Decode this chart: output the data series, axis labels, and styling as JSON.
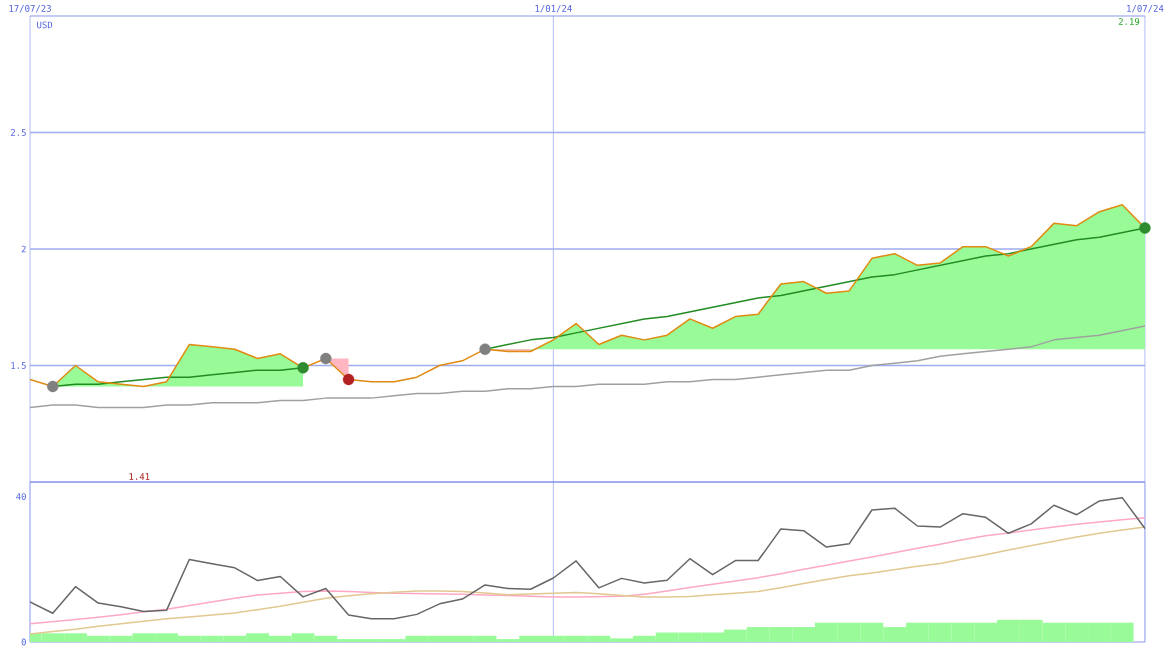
{
  "chart_data": [
    {
      "type": "line",
      "ylabel": "USD",
      "annotations": [
        "2.19",
        "1.41"
      ],
      "grid": true,
      "ylim": [
        1,
        3
      ],
      "yticks": [
        1.5,
        2,
        2.5
      ],
      "categories": [
        "17/07/23",
        null,
        null,
        null,
        null,
        null,
        null,
        null,
        null,
        null,
        null,
        null,
        null,
        null,
        null,
        null,
        null,
        null,
        null,
        null,
        null,
        null,
        null,
        "1/01/24",
        null,
        null,
        null,
        null,
        null,
        null,
        null,
        null,
        null,
        null,
        null,
        null,
        null,
        null,
        null,
        null,
        null,
        null,
        null,
        null,
        null,
        null,
        null,
        null,
        null,
        "1/07/24"
      ],
      "series": [
        {
          "type": "area",
          "color": "#98fb98",
          "values": [
            null,
            1.41,
            1.5,
            1.43,
            1.42,
            1.41,
            1.43,
            1.59,
            1.58,
            1.57,
            1.53,
            1.55,
            1.49,
            null,
            null,
            null,
            null,
            null,
            null,
            null,
            null,
            null,
            null,
            null,
            null,
            null,
            null,
            null,
            null,
            null,
            null,
            null,
            null,
            null,
            null,
            null,
            null,
            null,
            null,
            null,
            null,
            null,
            null,
            null,
            null,
            null,
            null,
            null,
            null,
            null
          ]
        },
        {
          "type": "area",
          "color": "#ffb6c1",
          "values": [
            null,
            null,
            null,
            null,
            null,
            null,
            null,
            null,
            null,
            null,
            null,
            null,
            null,
            1.53,
            1.44,
            null,
            null,
            null,
            null,
            null,
            null,
            null,
            null,
            null,
            null,
            null,
            null,
            null,
            null,
            null,
            null,
            null,
            null,
            null,
            null,
            null,
            null,
            null,
            null,
            null,
            null,
            null,
            null,
            null,
            null,
            null,
            null,
            null,
            null,
            null
          ]
        },
        {
          "type": "area",
          "color": "#98fb98",
          "values": [
            null,
            null,
            null,
            null,
            null,
            null,
            null,
            null,
            null,
            null,
            null,
            null,
            null,
            null,
            null,
            null,
            null,
            null,
            null,
            null,
            1.57,
            1.56,
            1.56,
            1.61,
            1.68,
            1.59,
            1.63,
            1.61,
            1.63,
            1.7,
            1.66,
            1.71,
            1.72,
            1.85,
            1.86,
            1.81,
            1.82,
            1.96,
            1.98,
            1.93,
            1.94,
            2.01,
            2.01,
            1.97,
            2.01,
            2.11,
            2.1,
            2.16,
            2.19,
            2.09
          ]
        },
        {
          "type": "area",
          "color": "#ffb6c1",
          "values": [
            null,
            null,
            null,
            null,
            null,
            null,
            null,
            null,
            null,
            null,
            null,
            null,
            null,
            null,
            null,
            null,
            null,
            null,
            null,
            null,
            1.57,
            1.56,
            1.56,
            null,
            null,
            null,
            null,
            null,
            null,
            null,
            null,
            null,
            null,
            null,
            null,
            null,
            null,
            null,
            null,
            null,
            null,
            null,
            null,
            null,
            null,
            null,
            null,
            null,
            null,
            null
          ]
        },
        {
          "color": "#a0a0a0",
          "values": [
            1.32,
            1.33,
            1.33,
            1.32,
            1.32,
            1.32,
            1.33,
            1.33,
            1.34,
            1.34,
            1.34,
            1.35,
            1.35,
            1.36,
            1.36,
            1.36,
            1.37,
            1.38,
            1.38,
            1.39,
            1.39,
            1.4,
            1.4,
            1.41,
            1.41,
            1.42,
            1.42,
            1.42,
            1.43,
            1.43,
            1.44,
            1.44,
            1.45,
            1.46,
            1.47,
            1.48,
            1.48,
            1.5,
            1.51,
            1.52,
            1.54,
            1.55,
            1.56,
            1.57,
            1.58,
            1.61,
            1.62,
            1.63,
            1.65,
            1.67
          ]
        },
        {
          "color": "#228b22",
          "values": [
            null,
            1.41,
            1.42,
            1.42,
            1.43,
            1.44,
            1.45,
            1.45,
            1.46,
            1.47,
            1.48,
            1.48,
            1.49,
            null,
            null,
            null,
            null,
            null,
            null,
            null,
            null,
            null,
            null,
            null,
            null,
            null,
            null,
            null,
            null,
            null,
            null,
            null,
            null,
            null,
            null,
            null,
            null,
            null,
            null,
            null,
            null,
            null,
            null,
            null,
            null,
            null,
            null,
            null,
            null,
            null
          ]
        },
        {
          "color": "#228b22",
          "values": [
            null,
            null,
            null,
            null,
            null,
            null,
            null,
            null,
            null,
            null,
            null,
            null,
            null,
            null,
            null,
            null,
            null,
            null,
            null,
            null,
            1.57,
            1.59,
            1.61,
            1.62,
            1.64,
            1.66,
            1.68,
            1.7,
            1.71,
            1.73,
            1.75,
            1.77,
            1.79,
            1.8,
            1.82,
            1.84,
            1.86,
            1.88,
            1.89,
            1.91,
            1.93,
            1.95,
            1.97,
            1.98,
            2.0,
            2.02,
            2.04,
            2.05,
            2.07,
            2.09
          ]
        },
        {
          "color": "#e08a10",
          "values": [
            1.44,
            1.41,
            1.5,
            1.43,
            1.42,
            1.41,
            1.43,
            1.59,
            1.58,
            1.57,
            1.53,
            1.55,
            1.49,
            1.53,
            1.44,
            1.43,
            1.43,
            1.45,
            1.5,
            1.52,
            1.57,
            1.56,
            1.56,
            1.61,
            1.68,
            1.59,
            1.63,
            1.61,
            1.63,
            1.7,
            1.66,
            1.71,
            1.72,
            1.85,
            1.86,
            1.81,
            1.82,
            1.96,
            1.98,
            1.93,
            1.94,
            2.01,
            2.01,
            1.97,
            2.01,
            2.11,
            2.1,
            2.16,
            2.19,
            2.09
          ]
        },
        {
          "type": "scatter",
          "marker": "circle",
          "color": "#808080",
          "values": [
            null,
            1.41,
            null,
            null,
            null,
            null,
            null,
            null,
            null,
            null,
            null,
            null,
            null,
            1.53,
            null,
            null,
            null,
            null,
            null,
            null,
            1.57,
            null,
            null,
            null,
            null,
            null,
            null,
            null,
            null,
            null,
            null,
            null,
            null,
            null,
            null,
            null,
            null,
            null,
            null,
            null,
            null,
            null,
            null,
            null,
            null,
            null,
            null,
            null,
            null,
            null
          ]
        },
        {
          "type": "scatter",
          "marker": "circle",
          "color": "#2e8b2e",
          "values": [
            null,
            null,
            null,
            null,
            null,
            null,
            null,
            null,
            null,
            null,
            null,
            null,
            1.49,
            null,
            null,
            null,
            null,
            null,
            null,
            null,
            null,
            null,
            null,
            null,
            null,
            null,
            null,
            null,
            null,
            null,
            null,
            null,
            null,
            null,
            null,
            null,
            null,
            null,
            null,
            null,
            null,
            null,
            null,
            null,
            null,
            null,
            null,
            null,
            null,
            2.09
          ]
        },
        {
          "type": "scatter",
          "marker": "circle",
          "color": "#b22222",
          "values": [
            null,
            null,
            null,
            null,
            null,
            null,
            null,
            null,
            null,
            null,
            null,
            null,
            null,
            null,
            1.44,
            null,
            null,
            null,
            null,
            null,
            null,
            null,
            null,
            null,
            null,
            null,
            null,
            null,
            null,
            null,
            null,
            null,
            null,
            null,
            null,
            null,
            null,
            null,
            null,
            null,
            null,
            null,
            null,
            null,
            null,
            null,
            null,
            null,
            null,
            null
          ]
        }
      ]
    },
    {
      "type": "line",
      "ylim": [
        0,
        44
      ],
      "yticks": [
        0,
        40
      ],
      "categories": [
        null,
        null,
        null,
        null,
        null,
        null,
        null,
        null,
        null,
        null,
        null,
        null,
        null,
        null,
        null,
        null,
        null,
        null,
        null,
        null,
        null,
        null,
        null,
        null,
        null,
        null,
        null,
        null,
        null,
        null,
        null,
        null,
        null,
        null,
        null,
        null,
        null,
        null,
        null,
        null,
        null,
        null,
        null,
        null,
        null,
        null,
        null,
        null,
        null,
        null
      ],
      "series": [
        {
          "type": "bar",
          "color": "#98fb98",
          "values": [
            2.4,
            2.4,
            2.4,
            1.7,
            1.7,
            2.4,
            2.4,
            1.7,
            1.7,
            1.7,
            2.4,
            1.7,
            2.4,
            1.7,
            0.8,
            0.8,
            0.8,
            1.7,
            1.7,
            1.7,
            1.7,
            0.8,
            1.7,
            1.7,
            1.7,
            1.7,
            1.0,
            1.7,
            2.6,
            2.6,
            2.6,
            3.4,
            4.1,
            4.1,
            4.1,
            5.3,
            5.3,
            5.3,
            4.1,
            5.3,
            5.3,
            5.3,
            5.3,
            6.1,
            6.1,
            5.3,
            5.3,
            5.3,
            5.3,
            null
          ]
        },
        {
          "color": "#ffa8c4",
          "values": [
            5.0,
            5.6,
            6.2,
            6.8,
            7.5,
            8.3,
            9.0,
            10.0,
            11.0,
            12.0,
            12.9,
            13.4,
            13.9,
            14.0,
            13.9,
            13.6,
            13.4,
            13.3,
            13.2,
            13.1,
            12.9,
            12.8,
            12.6,
            12.4,
            12.4,
            12.5,
            12.6,
            13.1,
            14.0,
            15.0,
            15.9,
            16.8,
            17.7,
            18.8,
            20.0,
            21.1,
            22.3,
            23.4,
            24.6,
            25.8,
            26.9,
            28.1,
            29.2,
            30.0,
            30.8,
            31.6,
            32.4,
            33.0,
            33.6,
            34.2
          ]
        },
        {
          "color": "#e0c890",
          "values": [
            2.2,
            2.9,
            3.5,
            4.3,
            5.0,
            5.7,
            6.4,
            6.9,
            7.4,
            8.0,
            8.9,
            9.8,
            10.9,
            12.0,
            12.7,
            13.3,
            13.7,
            14.0,
            14.0,
            13.9,
            13.5,
            13.0,
            13.2,
            13.4,
            13.6,
            13.3,
            12.8,
            12.4,
            12.4,
            12.5,
            13.0,
            13.4,
            13.9,
            14.9,
            16.1,
            17.2,
            18.2,
            19.0,
            19.9,
            20.8,
            21.6,
            22.8,
            24.0,
            25.3,
            26.5,
            27.7,
            28.9,
            29.9,
            30.8,
            31.6
          ]
        },
        {
          "color": "#666666",
          "values": [
            11.0,
            7.9,
            15.2,
            10.7,
            9.7,
            8.4,
            8.7,
            22.7,
            21.5,
            20.4,
            16.9,
            18.0,
            12.4,
            14.7,
            7.4,
            6.4,
            6.4,
            7.6,
            10.5,
            11.8,
            15.7,
            14.7,
            14.5,
            17.6,
            22.3,
            14.9,
            17.5,
            16.2,
            17.0,
            22.9,
            18.5,
            22.4,
            22.4,
            31.1,
            30.6,
            26.1,
            27.0,
            36.3,
            36.8,
            31.9,
            31.6,
            35.3,
            34.3,
            29.9,
            32.5,
            37.6,
            35.0,
            38.8,
            39.7,
            31.2
          ]
        }
      ]
    }
  ]
}
